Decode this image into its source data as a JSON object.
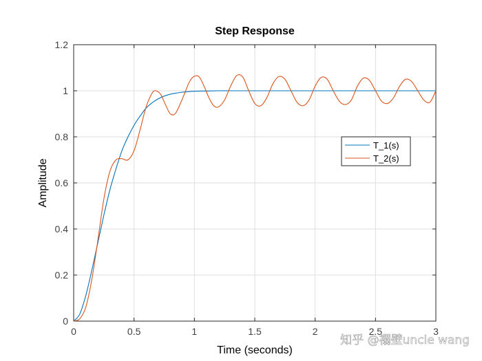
{
  "chart_data": {
    "type": "line",
    "title": "Step Response",
    "xlabel": "Time (seconds)",
    "ylabel": "Amplitude",
    "xlim": [
      0,
      3
    ],
    "ylim": [
      0,
      1.2
    ],
    "x_ticks": [
      0,
      0.5,
      1,
      1.5,
      2,
      2.5,
      3
    ],
    "x_tick_labels": [
      "0",
      "0.5",
      "1",
      "1.5",
      "2",
      "2.5",
      "3"
    ],
    "y_ticks": [
      0,
      0.2,
      0.4,
      0.6,
      0.8,
      1,
      1.2
    ],
    "y_tick_labels": [
      "0",
      "0.2",
      "0.4",
      "0.6",
      "0.8",
      "1",
      "1.2"
    ],
    "grid": true,
    "legend_position": "right",
    "series": [
      {
        "name": "T_1(s)",
        "color": "#0072BD",
        "x": [
          0,
          0.05,
          0.1,
          0.15,
          0.2,
          0.25,
          0.3,
          0.35,
          0.4,
          0.45,
          0.5,
          0.55,
          0.6,
          0.65,
          0.7,
          0.75,
          0.8,
          0.85,
          0.9,
          0.95,
          1.0,
          1.1,
          1.2,
          1.3,
          1.5,
          2.0,
          2.5,
          3.0
        ],
        "y": [
          0,
          0.03,
          0.11,
          0.22,
          0.34,
          0.46,
          0.57,
          0.66,
          0.74,
          0.8,
          0.85,
          0.89,
          0.925,
          0.948,
          0.965,
          0.977,
          0.985,
          0.99,
          0.994,
          0.996,
          0.998,
          0.999,
          1.0,
          1.0,
          1.0,
          1.0,
          1.0,
          1.0
        ]
      },
      {
        "name": "T_2(s)",
        "color": "#D95319",
        "x": [
          0,
          0.05,
          0.1,
          0.15,
          0.2,
          0.25,
          0.3,
          0.35,
          0.4,
          0.45,
          0.5,
          0.55,
          0.6,
          0.65,
          0.68,
          0.72,
          0.76,
          0.8,
          0.84,
          0.88,
          0.92,
          0.96,
          1.0,
          1.04,
          1.08,
          1.12,
          1.16,
          1.2,
          1.25,
          1.3,
          1.35,
          1.4,
          1.45,
          1.5,
          1.55,
          1.6,
          1.65,
          1.7,
          1.75,
          1.8,
          1.85,
          1.9,
          1.95,
          2.0,
          2.05,
          2.1,
          2.15,
          2.2,
          2.25,
          2.3,
          2.35,
          2.4,
          2.45,
          2.5,
          2.55,
          2.6,
          2.65,
          2.7,
          2.75,
          2.8,
          2.85,
          2.9,
          2.95,
          3.0
        ],
        "y": [
          0,
          0.01,
          0.06,
          0.18,
          0.35,
          0.53,
          0.65,
          0.7,
          0.705,
          0.7,
          0.74,
          0.83,
          0.93,
          0.99,
          1.0,
          0.985,
          0.94,
          0.9,
          0.9,
          0.94,
          0.99,
          1.04,
          1.063,
          1.06,
          1.02,
          0.97,
          0.935,
          0.93,
          0.96,
          1.02,
          1.066,
          1.06,
          1.0,
          0.945,
          0.935,
          0.97,
          1.03,
          1.062,
          1.05,
          1.0,
          0.95,
          0.935,
          0.96,
          1.02,
          1.058,
          1.05,
          1.0,
          0.955,
          0.94,
          0.96,
          1.02,
          1.055,
          1.045,
          1.0,
          0.955,
          0.945,
          0.97,
          1.02,
          1.05,
          1.04,
          1.0,
          0.96,
          0.95,
          1.0
        ]
      }
    ]
  },
  "watermark": {
    "text": "知乎 @禤壁uncle wang"
  },
  "colors": {
    "axis": "#262626",
    "grid": "#dedede",
    "tick_text": "#404040"
  }
}
